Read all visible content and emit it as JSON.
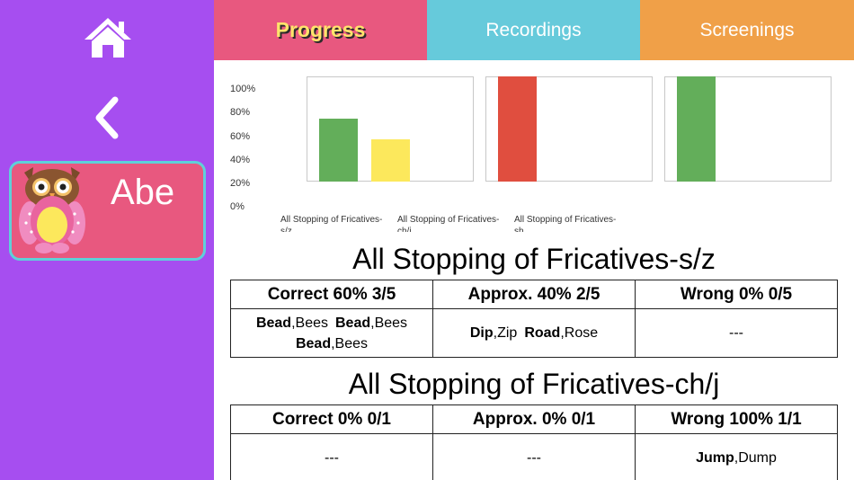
{
  "student": {
    "name": "Abe"
  },
  "tabs": [
    {
      "label": "Progress",
      "active": true
    },
    {
      "label": "Recordings"
    },
    {
      "label": "Screenings"
    }
  ],
  "chart_data": {
    "type": "bar",
    "ylim": [
      0,
      100
    ],
    "yticks": [
      "100%",
      "80%",
      "60%",
      "40%",
      "20%",
      "0%"
    ],
    "categories": [
      "All Stopping of Fricatives-s/z",
      "All Stopping of Fricatives-ch/j",
      "All Stopping of Fricatives-sh"
    ],
    "series": [
      {
        "color": "#63ae5a",
        "values": [
          60,
          0,
          100
        ]
      },
      {
        "color": "#fce85c",
        "values": [
          40,
          0,
          0
        ]
      },
      {
        "color": "#e04e3f",
        "values": [
          0,
          100,
          0
        ]
      }
    ]
  },
  "sections": [
    {
      "title": "All Stopping of Fricatives-s/z",
      "headers": [
        "Correct 60% 3/5",
        "Approx. 40% 2/5",
        "Wrong 0% 0/5"
      ],
      "cells": [
        [
          {
            "bold": "Bead",
            "plain": "Bees"
          },
          {
            "bold": "Bead",
            "plain": "Bees"
          },
          {
            "bold": "Bead",
            "plain": "Bees"
          }
        ],
        [
          {
            "bold": "Dip",
            "plain": "Zip"
          },
          {
            "bold": "Road",
            "plain": "Rose"
          }
        ],
        "---"
      ]
    },
    {
      "title": "All Stopping of Fricatives-ch/j",
      "headers": [
        "Correct 0% 0/1",
        "Approx. 0% 0/1",
        "Wrong 100% 1/1"
      ],
      "cells": [
        "---",
        "---",
        [
          {
            "bold": "Jump",
            "plain": "Dump"
          }
        ]
      ]
    }
  ],
  "colors": {
    "sidebar": "#a64ef0",
    "progress": "#e8587f",
    "recordings": "#66cadb",
    "screenings": "#f0a048"
  },
  "icons": {
    "home": "home-icon",
    "back": "chevron-left-icon",
    "avatar": "owl-avatar-icon"
  }
}
